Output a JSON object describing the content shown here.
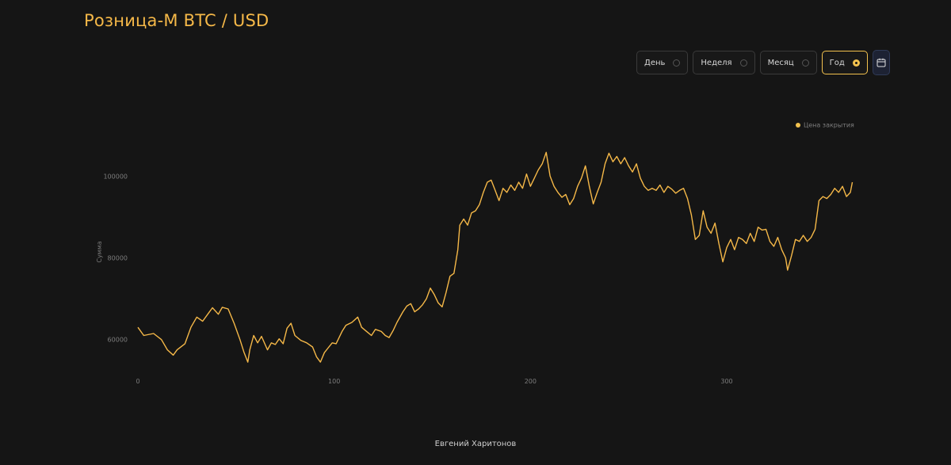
{
  "title": "Розница-М BTC / USD",
  "period_selector": {
    "options": [
      {
        "label": "День",
        "selected": false
      },
      {
        "label": "Неделя",
        "selected": false
      },
      {
        "label": "Месяц",
        "selected": false
      },
      {
        "label": "Год",
        "selected": true
      }
    ],
    "calendar_icon": "calendar-icon"
  },
  "footer_author": "Евгений Харитонов",
  "colors": {
    "accent": "#f2c14e",
    "line": "#f5b848",
    "background": "#151515"
  },
  "chart_data": {
    "type": "line",
    "title": "",
    "xlabel": "",
    "ylabel": "Сумма",
    "x_ticks": [
      0,
      100,
      200,
      300
    ],
    "y_ticks": [
      60000,
      80000,
      100000
    ],
    "xlim": [
      0,
      365
    ],
    "ylim": [
      52000,
      114000
    ],
    "grid": false,
    "legend_position": "top-right",
    "series": [
      {
        "name": "Цена закрытия",
        "color": "#f5b848",
        "key_points": [
          [
            0,
            63000
          ],
          [
            3,
            61000
          ],
          [
            8,
            61500
          ],
          [
            12,
            60000
          ],
          [
            15,
            57500
          ],
          [
            18,
            56200
          ],
          [
            20,
            57500
          ],
          [
            24,
            59000
          ],
          [
            27,
            63000
          ],
          [
            30,
            65500
          ],
          [
            33,
            64500
          ],
          [
            36,
            66500
          ],
          [
            38,
            67800
          ],
          [
            41,
            66200
          ],
          [
            43,
            67900
          ],
          [
            46,
            67500
          ],
          [
            49,
            64000
          ],
          [
            52,
            60000
          ],
          [
            54,
            57000
          ],
          [
            56,
            54500
          ],
          [
            57,
            57500
          ],
          [
            59,
            61000
          ],
          [
            61,
            59200
          ],
          [
            63,
            60800
          ],
          [
            66,
            57500
          ],
          [
            68,
            59200
          ],
          [
            70,
            58800
          ],
          [
            72,
            60200
          ],
          [
            74,
            59000
          ],
          [
            76,
            62800
          ],
          [
            78,
            64000
          ],
          [
            80,
            61000
          ],
          [
            83,
            59800
          ],
          [
            86,
            59200
          ],
          [
            89,
            58200
          ],
          [
            91,
            55800
          ],
          [
            93,
            54500
          ],
          [
            95,
            56800
          ],
          [
            97,
            58000
          ],
          [
            99,
            59200
          ],
          [
            101,
            59000
          ],
          [
            104,
            62000
          ],
          [
            106,
            63500
          ],
          [
            109,
            64200
          ],
          [
            112,
            65500
          ],
          [
            114,
            63000
          ],
          [
            117,
            61800
          ],
          [
            119,
            61000
          ],
          [
            121,
            62500
          ],
          [
            124,
            62000
          ],
          [
            126,
            61000
          ],
          [
            128,
            60500
          ],
          [
            130,
            62200
          ],
          [
            132,
            64200
          ],
          [
            135,
            66800
          ],
          [
            137,
            68200
          ],
          [
            139,
            68800
          ],
          [
            141,
            66800
          ],
          [
            143,
            67500
          ],
          [
            145,
            68500
          ],
          [
            147,
            70000
          ],
          [
            149,
            72600
          ],
          [
            151,
            71000
          ],
          [
            153,
            69000
          ],
          [
            155,
            68000
          ],
          [
            157,
            71500
          ],
          [
            159,
            75500
          ],
          [
            161,
            76200
          ],
          [
            163,
            82000
          ],
          [
            164,
            88000
          ],
          [
            166,
            89500
          ],
          [
            168,
            88000
          ],
          [
            170,
            91000
          ],
          [
            172,
            91500
          ],
          [
            174,
            93000
          ],
          [
            176,
            96000
          ],
          [
            178,
            98500
          ],
          [
            180,
            99000
          ],
          [
            182,
            96500
          ],
          [
            184,
            94000
          ],
          [
            186,
            97000
          ],
          [
            188,
            96000
          ],
          [
            190,
            97800
          ],
          [
            192,
            96500
          ],
          [
            194,
            98500
          ],
          [
            196,
            97000
          ],
          [
            198,
            100500
          ],
          [
            200,
            97500
          ],
          [
            202,
            99500
          ],
          [
            204,
            101500
          ],
          [
            206,
            103000
          ],
          [
            208,
            105800
          ],
          [
            210,
            100000
          ],
          [
            212,
            97500
          ],
          [
            214,
            96000
          ],
          [
            216,
            94800
          ],
          [
            218,
            95500
          ],
          [
            220,
            93000
          ],
          [
            222,
            94500
          ],
          [
            224,
            97500
          ],
          [
            226,
            99500
          ],
          [
            228,
            102500
          ],
          [
            230,
            97500
          ],
          [
            232,
            93200
          ],
          [
            234,
            96000
          ],
          [
            236,
            98500
          ],
          [
            238,
            103000
          ],
          [
            240,
            105600
          ],
          [
            242,
            103500
          ],
          [
            244,
            104800
          ],
          [
            246,
            103000
          ],
          [
            248,
            104500
          ],
          [
            250,
            102500
          ],
          [
            252,
            101000
          ],
          [
            254,
            103000
          ],
          [
            256,
            99500
          ],
          [
            258,
            97500
          ],
          [
            260,
            96500
          ],
          [
            262,
            97000
          ],
          [
            264,
            96500
          ],
          [
            266,
            97800
          ],
          [
            268,
            96000
          ],
          [
            270,
            97500
          ],
          [
            272,
            96800
          ],
          [
            274,
            95800
          ],
          [
            276,
            96500
          ],
          [
            278,
            97000
          ],
          [
            280,
            94500
          ],
          [
            282,
            90500
          ],
          [
            284,
            84500
          ],
          [
            286,
            85500
          ],
          [
            288,
            91500
          ],
          [
            290,
            87500
          ],
          [
            292,
            86000
          ],
          [
            294,
            88500
          ],
          [
            296,
            83500
          ],
          [
            298,
            79000
          ],
          [
            300,
            82500
          ],
          [
            302,
            84500
          ],
          [
            304,
            82000
          ],
          [
            306,
            85000
          ],
          [
            308,
            84500
          ],
          [
            310,
            83500
          ],
          [
            312,
            86000
          ],
          [
            314,
            84000
          ],
          [
            316,
            87500
          ],
          [
            318,
            86800
          ],
          [
            320,
            87000
          ],
          [
            322,
            84000
          ],
          [
            324,
            82800
          ],
          [
            326,
            85000
          ],
          [
            328,
            82000
          ],
          [
            330,
            80000
          ],
          [
            331,
            77000
          ],
          [
            333,
            80500
          ],
          [
            335,
            84500
          ],
          [
            337,
            84000
          ],
          [
            339,
            85500
          ],
          [
            341,
            84000
          ],
          [
            343,
            85000
          ],
          [
            345,
            87000
          ],
          [
            347,
            94000
          ],
          [
            349,
            95000
          ],
          [
            351,
            94500
          ],
          [
            353,
            95500
          ],
          [
            355,
            97000
          ],
          [
            357,
            96000
          ],
          [
            359,
            97500
          ],
          [
            361,
            95000
          ],
          [
            363,
            96000
          ],
          [
            364,
            98500
          ]
        ]
      }
    ]
  }
}
